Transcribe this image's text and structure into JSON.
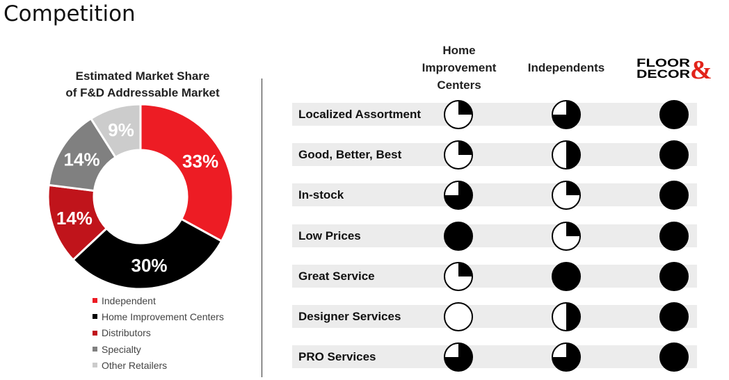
{
  "page": {
    "title": "Competition"
  },
  "chart_data": {
    "type": "pie",
    "title": "Estimated Market Share\nof F&D Addressable Market",
    "donut": true,
    "legend_position": "bottom",
    "slices": [
      {
        "label": "Independent",
        "value": 33,
        "display": "33%",
        "color": "#ed1c24"
      },
      {
        "label": "Home Improvement Centers",
        "value": 30,
        "display": "30%",
        "color": "#000000"
      },
      {
        "label": "Distributors",
        "value": 14,
        "display": "14%",
        "color": "#c0141b"
      },
      {
        "label": "Specialty",
        "value": 14,
        "display": "14%",
        "color": "#808080"
      },
      {
        "label": "Other Retailers",
        "value": 9,
        "display": "9%",
        "color": "#cccccc"
      }
    ]
  },
  "comparison": {
    "columns": [
      {
        "label": "Home\nImprovement\nCenters"
      },
      {
        "label": "Independents"
      },
      {
        "label": "Floor & Decor",
        "logo_text_line1": "FLOOR",
        "logo_text_line2": "DECOR",
        "logo_mark": "&"
      }
    ],
    "rows": [
      {
        "label": "Localized Assortment",
        "ratings": [
          0.25,
          0.75,
          1.0
        ]
      },
      {
        "label": "Good, Better, Best",
        "ratings": [
          0.25,
          0.5,
          1.0
        ]
      },
      {
        "label": "In-stock",
        "ratings": [
          0.75,
          0.25,
          1.0
        ]
      },
      {
        "label": "Low Prices",
        "ratings": [
          1.0,
          0.25,
          1.0
        ]
      },
      {
        "label": "Great Service",
        "ratings": [
          0.25,
          1.0,
          1.0
        ]
      },
      {
        "label": "Designer Services",
        "ratings": [
          0.0,
          0.5,
          1.0
        ]
      },
      {
        "label": "PRO Services",
        "ratings": [
          0.75,
          0.75,
          1.0
        ]
      }
    ],
    "rating_scale": "Harvey balls: fraction filled (0 = empty, 1 = full)"
  }
}
